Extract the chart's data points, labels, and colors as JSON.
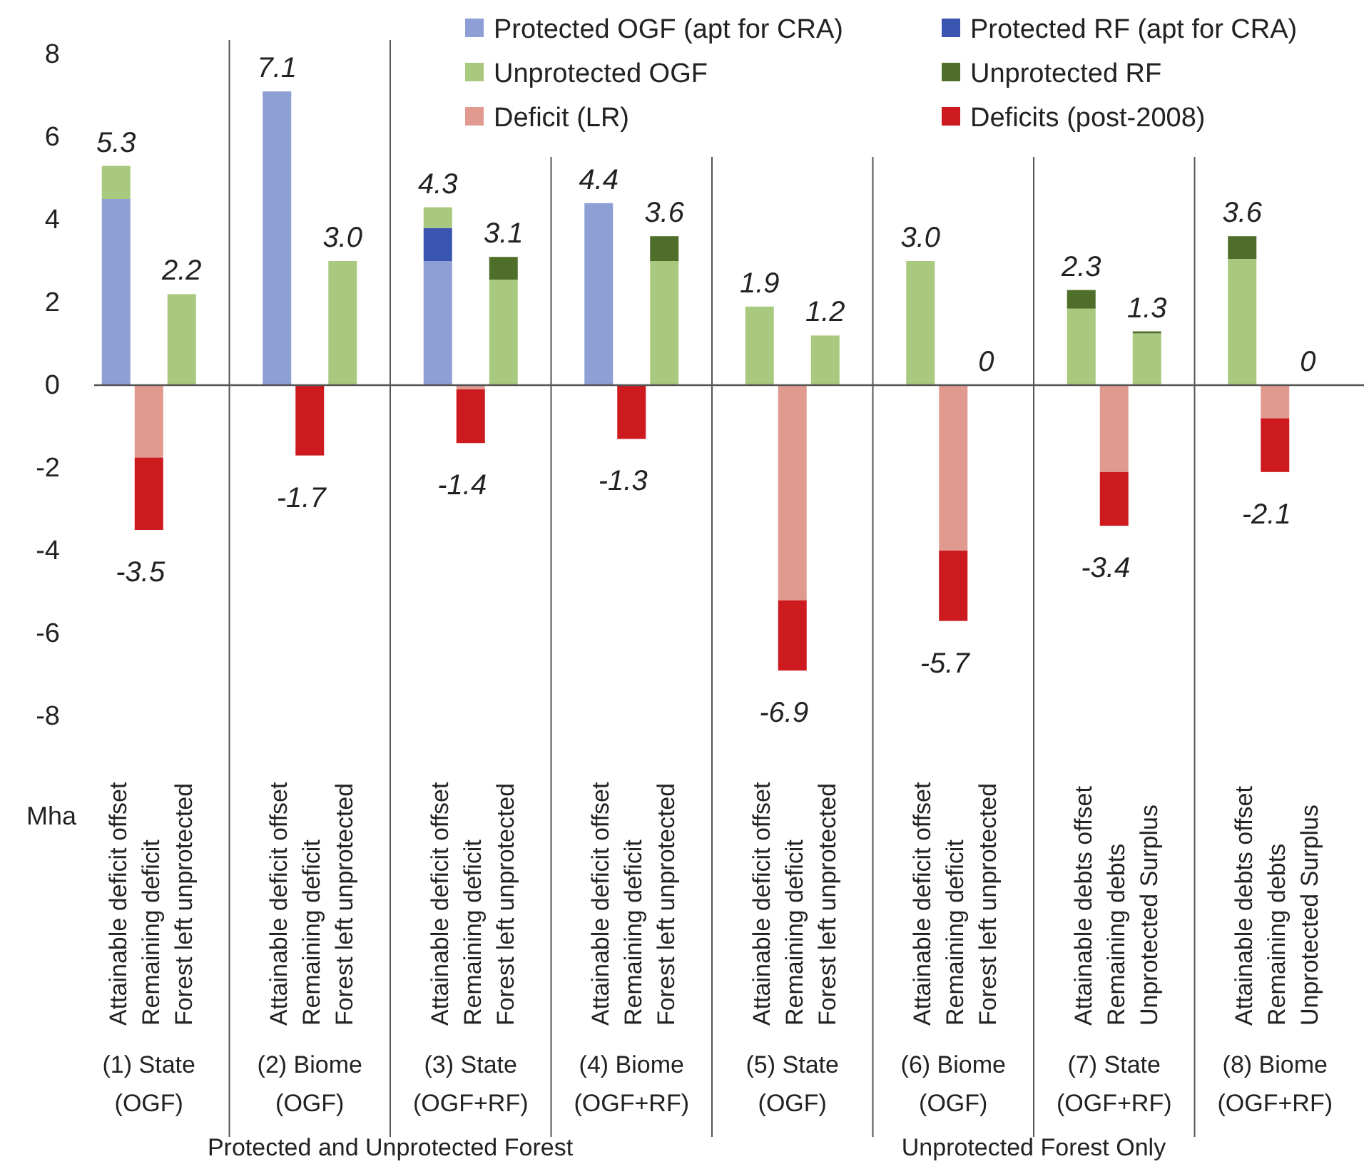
{
  "chart_data": {
    "type": "bar",
    "stacked": true,
    "ylabel": "Mha",
    "ylim": [
      -8,
      8
    ],
    "yticks": [
      -8,
      -6,
      -4,
      -2,
      0,
      2,
      4,
      6,
      8
    ],
    "legend": "top right",
    "categories": [
      "Attainable deficit offset",
      "Remaining deficit",
      "Forest left unprotected",
      "Attainable deficit offset",
      "Remaining deficit",
      "Forest left unprotected",
      "Attainable deficit offset",
      "Remaining deficit",
      "Forest left unprotected",
      "Attainable deficit offset",
      "Remaining deficit",
      "Forest left unprotected",
      "Attainable deficit offset",
      "Remaining deficit",
      "Forest left unprotected",
      "Attainable deficit offset",
      "Remaining deficit",
      "Forest left unprotected",
      "Attainable debts offset",
      "Remaining debts",
      "Unprotected Surplus",
      "Attainable debts offset",
      "Remaining debts",
      "Unprotected Surplus"
    ],
    "series": [
      {
        "name": "Protected OGF (apt for CRA)",
        "color": "#8e9fd5",
        "values": [
          4.5,
          null,
          null,
          7.1,
          null,
          null,
          3.0,
          null,
          null,
          4.4,
          null,
          null,
          null,
          null,
          null,
          null,
          null,
          null,
          null,
          null,
          null,
          null,
          null,
          null
        ]
      },
      {
        "name": "Protected RF (apt for CRA)",
        "color": "#3a55b0",
        "values": [
          null,
          null,
          null,
          null,
          null,
          null,
          0.8,
          null,
          null,
          null,
          null,
          null,
          null,
          null,
          null,
          null,
          null,
          null,
          null,
          null,
          null,
          null,
          null,
          null
        ]
      },
      {
        "name": "Unprotected OGF",
        "color": "#a9c97f",
        "values": [
          0.8,
          null,
          2.2,
          null,
          null,
          3.0,
          0.5,
          null,
          2.55,
          null,
          null,
          3.0,
          1.9,
          null,
          1.2,
          3.0,
          null,
          0,
          1.85,
          null,
          1.25,
          3.05,
          null,
          0
        ]
      },
      {
        "name": "Unprotected RF",
        "color": "#4e6e2a",
        "values": [
          null,
          null,
          null,
          null,
          null,
          null,
          null,
          null,
          0.55,
          null,
          null,
          0.6,
          null,
          null,
          null,
          null,
          null,
          null,
          0.45,
          null,
          0.05,
          0.55,
          null,
          null
        ]
      },
      {
        "name": "Deficit (LR)",
        "color": "#e09a90",
        "values": [
          null,
          -1.75,
          null,
          null,
          null,
          null,
          null,
          -0.1,
          null,
          null,
          null,
          null,
          null,
          -5.2,
          null,
          null,
          -4.0,
          null,
          null,
          -2.1,
          null,
          null,
          -0.8,
          null
        ]
      },
      {
        "name": "Deficits (post-2008)",
        "color": "#cc1a1e",
        "values": [
          null,
          -1.75,
          null,
          null,
          -1.7,
          null,
          null,
          -1.3,
          null,
          null,
          -1.3,
          null,
          null,
          -1.7,
          null,
          null,
          -1.7,
          null,
          null,
          -1.3,
          null,
          null,
          -1.3,
          null
        ]
      }
    ],
    "totals": [
      "5.3",
      "-3.5",
      "2.2",
      "7.1",
      "-1.7",
      "3.0",
      "4.3",
      "-1.4",
      "3.1",
      "4.4",
      "-1.3",
      "3.6",
      "1.9",
      "-6.9",
      "1.2",
      "3.0",
      "-5.7",
      "0",
      "2.3",
      "-3.4",
      "1.3",
      "3.6",
      "-2.1",
      "0"
    ],
    "annotations": [
      "(1) State (OGF)",
      "(2) Biome (OGF)",
      "(3) State (OGF+RF)",
      "(4) Biome (OGF+RF)",
      "(5) State (OGF)",
      "(6) Biome (OGF)",
      "(7) State (OGF+RF)",
      "(8) Biome (OGF+RF)",
      "Protected and Unprotected Forest",
      "Unprotected Forest Only"
    ]
  }
}
